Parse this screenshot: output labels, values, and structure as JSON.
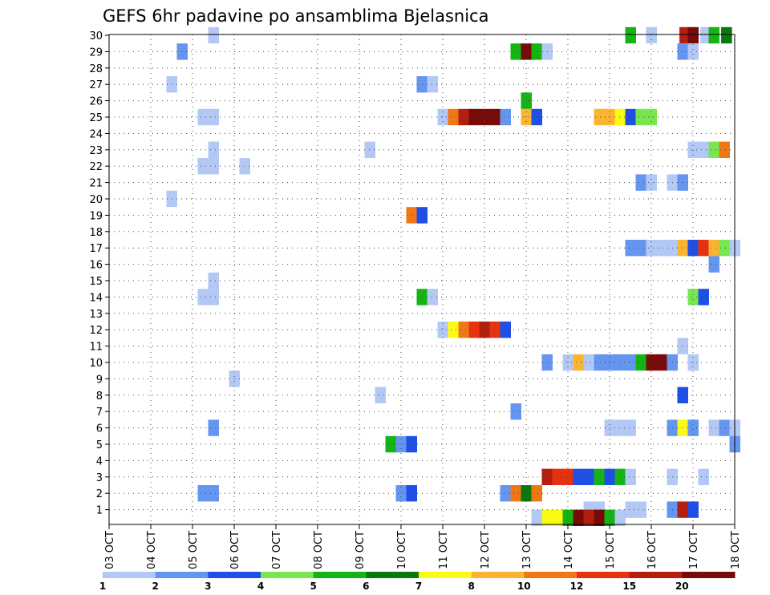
{
  "chart_data": {
    "type": "heatmap",
    "title": "GEFS 6hr padavine po ansamblima Bjelasnica",
    "y_ticks": [
      "1",
      "2",
      "3",
      "4",
      "5",
      "6",
      "7",
      "8",
      "9",
      "10",
      "11",
      "12",
      "13",
      "14",
      "15",
      "16",
      "17",
      "18",
      "19",
      "20",
      "21",
      "22",
      "23",
      "24",
      "25",
      "26",
      "27",
      "28",
      "29",
      "30"
    ],
    "x_ticks": [
      "03 OCT",
      "04 OCT",
      "05 OCT",
      "06 OCT",
      "07 OCT",
      "08 OCT",
      "09 OCT",
      "10 OCT",
      "11 OCT",
      "12 OCT",
      "13 OCT",
      "14 OCT",
      "15 OCT",
      "16 OCT",
      "17 OCT",
      "18 OCT"
    ],
    "grid": true,
    "legend": {
      "placement": "bottom",
      "colors": [
        "#b4c8f5",
        "#6496f0",
        "#1e50e6",
        "#78e650",
        "#14b414",
        "#0a780a",
        "#fafa14",
        "#fab432",
        "#f07814",
        "#e6320f",
        "#b41e0f",
        "#780a0a"
      ],
      "labels": [
        "1",
        "2",
        "3",
        "4",
        "5",
        "6",
        "7",
        "8",
        "10",
        "12",
        "15",
        "20"
      ]
    },
    "cells": [
      {
        "member": 30,
        "t": 2.5,
        "v": 1
      },
      {
        "member": 30,
        "t": 12.5,
        "v": 5
      },
      {
        "member": 30,
        "t": 13,
        "v": 1
      },
      {
        "member": 30,
        "t": 13.8,
        "v": 15
      },
      {
        "member": 30,
        "t": 14,
        "v": 20
      },
      {
        "member": 30,
        "t": 14.3,
        "v": 1
      },
      {
        "member": 30,
        "t": 14.5,
        "v": 5
      },
      {
        "member": 30,
        "t": 14.8,
        "v": 6
      },
      {
        "member": 29,
        "t": 1.75,
        "v": 2
      },
      {
        "member": 29,
        "t": 9.75,
        "v": 5
      },
      {
        "member": 29,
        "t": 10,
        "v": 20
      },
      {
        "member": 29,
        "t": 10.25,
        "v": 5
      },
      {
        "member": 29,
        "t": 10.5,
        "v": 1
      },
      {
        "member": 29,
        "t": 13.75,
        "v": 2
      },
      {
        "member": 29,
        "t": 14,
        "v": 1
      },
      {
        "member": 27,
        "t": 1.5,
        "v": 1
      },
      {
        "member": 27,
        "t": 7.5,
        "v": 2
      },
      {
        "member": 27,
        "t": 7.75,
        "v": 1
      },
      {
        "member": 26,
        "t": 10,
        "v": 5
      },
      {
        "member": 25,
        "t": 2.25,
        "v": 1
      },
      {
        "member": 25,
        "t": 2.5,
        "v": 1
      },
      {
        "member": 25,
        "t": 8,
        "v": 1
      },
      {
        "member": 25,
        "t": 8.25,
        "v": 10
      },
      {
        "member": 25,
        "t": 8.5,
        "v": 15
      },
      {
        "member": 25,
        "t": 8.75,
        "v": 20
      },
      {
        "member": 25,
        "t": 9,
        "v": 20
      },
      {
        "member": 25,
        "t": 9.25,
        "v": 20
      },
      {
        "member": 25,
        "t": 9.5,
        "v": 2
      },
      {
        "member": 25,
        "t": 10,
        "v": 8
      },
      {
        "member": 25,
        "t": 10.25,
        "v": 3
      },
      {
        "member": 25,
        "t": 11.75,
        "v": 8
      },
      {
        "member": 25,
        "t": 12,
        "v": 8
      },
      {
        "member": 25,
        "t": 12.25,
        "v": 7
      },
      {
        "member": 25,
        "t": 12.5,
        "v": 3
      },
      {
        "member": 25,
        "t": 12.75,
        "v": 4
      },
      {
        "member": 25,
        "t": 13,
        "v": 4
      },
      {
        "member": 23,
        "t": 2.5,
        "v": 1
      },
      {
        "member": 23,
        "t": 6.25,
        "v": 1
      },
      {
        "member": 23,
        "t": 14,
        "v": 1
      },
      {
        "member": 23,
        "t": 14.25,
        "v": 1
      },
      {
        "member": 23,
        "t": 14.5,
        "v": 4
      },
      {
        "member": 23,
        "t": 14.75,
        "v": 10
      },
      {
        "member": 22,
        "t": 2.25,
        "v": 1
      },
      {
        "member": 22,
        "t": 2.5,
        "v": 1
      },
      {
        "member": 22,
        "t": 3.25,
        "v": 1
      },
      {
        "member": 21,
        "t": 12.75,
        "v": 2
      },
      {
        "member": 21,
        "t": 13,
        "v": 1
      },
      {
        "member": 21,
        "t": 13.5,
        "v": 1
      },
      {
        "member": 21,
        "t": 13.75,
        "v": 2
      },
      {
        "member": 20,
        "t": 1.5,
        "v": 1
      },
      {
        "member": 19,
        "t": 7.25,
        "v": 10
      },
      {
        "member": 19,
        "t": 7.5,
        "v": 3
      },
      {
        "member": 17,
        "t": 12.5,
        "v": 2
      },
      {
        "member": 17,
        "t": 12.75,
        "v": 2
      },
      {
        "member": 17,
        "t": 13,
        "v": 1
      },
      {
        "member": 17,
        "t": 13.25,
        "v": 1
      },
      {
        "member": 17,
        "t": 13.5,
        "v": 1
      },
      {
        "member": 17,
        "t": 13.75,
        "v": 8
      },
      {
        "member": 17,
        "t": 14,
        "v": 3
      },
      {
        "member": 17,
        "t": 14.25,
        "v": 12
      },
      {
        "member": 17,
        "t": 14.5,
        "v": 8
      },
      {
        "member": 17,
        "t": 14.75,
        "v": 4
      },
      {
        "member": 17,
        "t": 15,
        "v": 1
      },
      {
        "member": 16,
        "t": 14.5,
        "v": 2
      },
      {
        "member": 15,
        "t": 2.5,
        "v": 1
      },
      {
        "member": 14,
        "t": 2.25,
        "v": 1
      },
      {
        "member": 14,
        "t": 2.5,
        "v": 1
      },
      {
        "member": 14,
        "t": 7.5,
        "v": 5
      },
      {
        "member": 14,
        "t": 7.75,
        "v": 1
      },
      {
        "member": 14,
        "t": 14,
        "v": 4
      },
      {
        "member": 14,
        "t": 14.25,
        "v": 3
      },
      {
        "member": 12,
        "t": 8,
        "v": 1
      },
      {
        "member": 12,
        "t": 8.25,
        "v": 7
      },
      {
        "member": 12,
        "t": 8.5,
        "v": 10
      },
      {
        "member": 12,
        "t": 8.75,
        "v": 12
      },
      {
        "member": 12,
        "t": 9,
        "v": 15
      },
      {
        "member": 12,
        "t": 9.25,
        "v": 12
      },
      {
        "member": 12,
        "t": 9.5,
        "v": 3
      },
      {
        "member": 11,
        "t": 13.75,
        "v": 1
      },
      {
        "member": 10,
        "t": 14,
        "v": 1
      },
      {
        "member": 10,
        "t": 10.5,
        "v": 2
      },
      {
        "member": 10,
        "t": 11,
        "v": 1
      },
      {
        "member": 10,
        "t": 11.25,
        "v": 8
      },
      {
        "member": 10,
        "t": 11.5,
        "v": 1
      },
      {
        "member": 10,
        "t": 11.75,
        "v": 2
      },
      {
        "member": 10,
        "t": 12,
        "v": 2
      },
      {
        "member": 10,
        "t": 12.25,
        "v": 2
      },
      {
        "member": 10,
        "t": 12.5,
        "v": 2
      },
      {
        "member": 10,
        "t": 12.75,
        "v": 5
      },
      {
        "member": 10,
        "t": 13,
        "v": 20
      },
      {
        "member": 10,
        "t": 13.25,
        "v": 20
      },
      {
        "member": 10,
        "t": 13.5,
        "v": 2
      },
      {
        "member": 9,
        "t": 3,
        "v": 1
      },
      {
        "member": 8,
        "t": 6.5,
        "v": 1
      },
      {
        "member": 8,
        "t": 13.75,
        "v": 3
      },
      {
        "member": 7,
        "t": 9.75,
        "v": 2
      },
      {
        "member": 6,
        "t": 2.5,
        "v": 2
      },
      {
        "member": 6,
        "t": 12,
        "v": 1
      },
      {
        "member": 6,
        "t": 12.25,
        "v": 1
      },
      {
        "member": 6,
        "t": 12.5,
        "v": 1
      },
      {
        "member": 6,
        "t": 13.5,
        "v": 2
      },
      {
        "member": 6,
        "t": 13.75,
        "v": 7
      },
      {
        "member": 6,
        "t": 14,
        "v": 2
      },
      {
        "member": 6,
        "t": 14.5,
        "v": 1
      },
      {
        "member": 6,
        "t": 14.75,
        "v": 2
      },
      {
        "member": 6,
        "t": 15,
        "v": 1
      },
      {
        "member": 5,
        "t": 6.75,
        "v": 5
      },
      {
        "member": 5,
        "t": 7,
        "v": 2
      },
      {
        "member": 5,
        "t": 7.25,
        "v": 3
      },
      {
        "member": 5,
        "t": 15,
        "v": 2
      },
      {
        "member": 3,
        "t": 10.5,
        "v": 15
      },
      {
        "member": 3,
        "t": 10.75,
        "v": 12
      },
      {
        "member": 3,
        "t": 11,
        "v": 12
      },
      {
        "member": 3,
        "t": 11.25,
        "v": 3
      },
      {
        "member": 3,
        "t": 11.5,
        "v": 3
      },
      {
        "member": 3,
        "t": 11.75,
        "v": 5
      },
      {
        "member": 3,
        "t": 12,
        "v": 3
      },
      {
        "member": 3,
        "t": 12.25,
        "v": 5
      },
      {
        "member": 3,
        "t": 12.5,
        "v": 1
      },
      {
        "member": 3,
        "t": 13.5,
        "v": 1
      },
      {
        "member": 3,
        "t": 14.25,
        "v": 1
      },
      {
        "member": 2,
        "t": 2.25,
        "v": 2
      },
      {
        "member": 2,
        "t": 2.5,
        "v": 2
      },
      {
        "member": 2,
        "t": 7,
        "v": 2
      },
      {
        "member": 2,
        "t": 7.25,
        "v": 3
      },
      {
        "member": 2,
        "t": 9.5,
        "v": 2
      },
      {
        "member": 2,
        "t": 9.75,
        "v": 10
      },
      {
        "member": 2,
        "t": 10,
        "v": 6
      },
      {
        "member": 2,
        "t": 10.25,
        "v": 10
      },
      {
        "member": 1,
        "t": 11.5,
        "v": 1
      },
      {
        "member": 1,
        "t": 11.75,
        "v": 1
      },
      {
        "member": 1,
        "t": 12.5,
        "v": 1
      },
      {
        "member": 1,
        "t": 12.75,
        "v": 1
      },
      {
        "member": 1,
        "t": 13.5,
        "v": 2
      },
      {
        "member": 1,
        "t": 13.75,
        "v": 15
      },
      {
        "member": 1,
        "t": 14,
        "v": 3
      },
      {
        "member": 0.5,
        "t": 10.25,
        "v": 1
      },
      {
        "member": 0.5,
        "t": 10.5,
        "v": 7
      },
      {
        "member": 0.5,
        "t": 10.75,
        "v": 7
      },
      {
        "member": 0.5,
        "t": 11,
        "v": 5
      },
      {
        "member": 0.5,
        "t": 11.25,
        "v": 20
      },
      {
        "member": 0.5,
        "t": 11.5,
        "v": 15
      },
      {
        "member": 0.5,
        "t": 11.75,
        "v": 20
      },
      {
        "member": 0.5,
        "t": 12,
        "v": 5
      },
      {
        "member": 0.5,
        "t": 12.25,
        "v": 1
      }
    ]
  }
}
